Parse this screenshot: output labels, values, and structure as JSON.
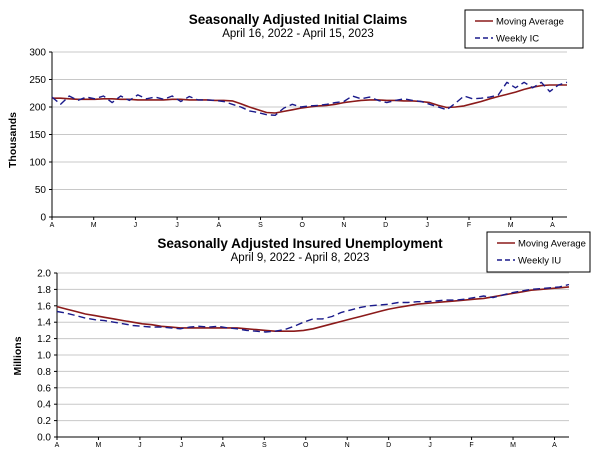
{
  "chart_data": [
    {
      "type": "line",
      "title": "Seasonally Adjusted Initial Claims",
      "subtitle": "April 16, 2022 - April 15, 2023",
      "ylabel": "Thousands",
      "xlabel": "",
      "ylim": [
        0,
        300
      ],
      "yticks": [
        0,
        50,
        100,
        150,
        200,
        250,
        300
      ],
      "x_tick_labels": [
        "A",
        "M",
        "J",
        "J",
        "A",
        "S",
        "O",
        "N",
        "D",
        "J",
        "F",
        "M",
        "A"
      ],
      "grid": "horizontal",
      "legend_position": "top-right",
      "series": [
        {
          "name": "Moving Average",
          "style": "solid",
          "color": "#8b1a1a",
          "values": [
            216,
            216,
            215,
            214,
            214,
            214,
            215,
            215,
            214,
            214,
            213,
            213,
            213,
            213,
            214,
            214,
            213,
            213,
            213,
            212,
            212,
            211,
            206,
            200,
            195,
            190,
            189,
            192,
            195,
            198,
            200,
            202,
            203,
            205,
            208,
            210,
            212,
            213,
            213,
            212,
            212,
            211,
            211,
            210,
            208,
            203,
            199,
            200,
            202,
            206,
            210,
            215,
            219,
            223,
            227,
            232,
            236,
            239,
            240,
            240,
            240
          ]
        },
        {
          "name": "Weekly IC",
          "style": "dashed",
          "color": "#1a1a8b",
          "values": [
            218,
            205,
            220,
            212,
            218,
            215,
            220,
            208,
            220,
            212,
            222,
            215,
            218,
            214,
            220,
            210,
            219,
            213,
            213,
            212,
            210,
            205,
            200,
            193,
            190,
            186,
            185,
            198,
            205,
            200,
            202,
            203,
            205,
            208,
            210,
            220,
            215,
            218,
            212,
            208,
            212,
            215,
            212,
            210,
            205,
            200,
            195,
            207,
            220,
            215,
            216,
            218,
            222,
            245,
            235,
            245,
            235,
            245,
            228,
            240,
            245
          ]
        }
      ]
    },
    {
      "type": "line",
      "title": "Seasonally Adjusted Insured Unemployment",
      "subtitle": "April 9, 2022 - April 8, 2023",
      "ylabel": "Millions",
      "xlabel": "",
      "ylim": [
        0.0,
        2.0
      ],
      "yticks": [
        0.0,
        0.2,
        0.4,
        0.6,
        0.8,
        1.0,
        1.2,
        1.4,
        1.6,
        1.8,
        2.0
      ],
      "x_tick_labels": [
        "A",
        "M",
        "J",
        "J",
        "A",
        "S",
        "O",
        "N",
        "D",
        "J",
        "F",
        "M",
        "A"
      ],
      "grid": "horizontal",
      "legend_position": "top-right",
      "series": [
        {
          "name": "Moving Average",
          "style": "solid",
          "color": "#8b1a1a",
          "values": [
            1.59,
            1.56,
            1.53,
            1.5,
            1.48,
            1.46,
            1.44,
            1.42,
            1.4,
            1.38,
            1.37,
            1.35,
            1.34,
            1.33,
            1.33,
            1.33,
            1.33,
            1.33,
            1.33,
            1.33,
            1.32,
            1.31,
            1.3,
            1.29,
            1.29,
            1.29,
            1.3,
            1.32,
            1.35,
            1.38,
            1.41,
            1.44,
            1.47,
            1.5,
            1.53,
            1.56,
            1.58,
            1.6,
            1.62,
            1.63,
            1.64,
            1.65,
            1.66,
            1.67,
            1.68,
            1.69,
            1.71,
            1.73,
            1.75,
            1.77,
            1.79,
            1.8,
            1.81,
            1.82,
            1.83
          ]
        },
        {
          "name": "Weekly IU",
          "style": "dashed",
          "color": "#1a1a8b",
          "values": [
            1.53,
            1.51,
            1.48,
            1.45,
            1.43,
            1.42,
            1.4,
            1.38,
            1.36,
            1.35,
            1.34,
            1.34,
            1.33,
            1.32,
            1.34,
            1.35,
            1.34,
            1.35,
            1.33,
            1.32,
            1.3,
            1.29,
            1.28,
            1.29,
            1.31,
            1.35,
            1.4,
            1.44,
            1.44,
            1.47,
            1.52,
            1.55,
            1.58,
            1.6,
            1.61,
            1.62,
            1.64,
            1.64,
            1.65,
            1.65,
            1.66,
            1.67,
            1.67,
            1.68,
            1.7,
            1.72,
            1.7,
            1.73,
            1.76,
            1.78,
            1.8,
            1.81,
            1.82,
            1.83,
            1.86
          ]
        }
      ]
    }
  ]
}
